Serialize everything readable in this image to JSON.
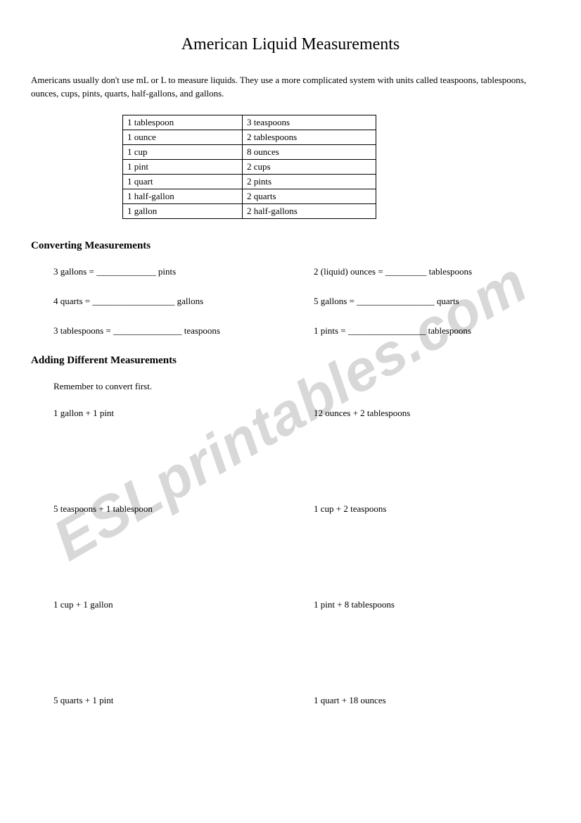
{
  "title": "American Liquid Measurements",
  "intro": "Americans usually don't use mL or L to measure liquids. They use a more complicated system with units called teaspoons, tablespoons, ounces, cups, pints, quarts, half-gallons, and gallons.",
  "table": {
    "rows": [
      {
        "left": "1 tablespoon",
        "right": "3 teaspoons"
      },
      {
        "left": "1 ounce",
        "right": "2 tablespoons"
      },
      {
        "left": "1 cup",
        "right": "8 ounces"
      },
      {
        "left": "1 pint",
        "right": "2 cups"
      },
      {
        "left": "1 quart",
        "right": "2 pints"
      },
      {
        "left": "1 half-gallon",
        "right": "2 quarts"
      },
      {
        "left": "1 gallon",
        "right": "2 half-gallons"
      }
    ]
  },
  "section1": {
    "heading": "Converting Measurements",
    "items": [
      {
        "left": "3 gallons = _____________ pints",
        "right": "2 (liquid) ounces = _________ tablespoons"
      },
      {
        "left": "4 quarts = __________________ gallons",
        "right": "5 gallons = _________________ quarts"
      },
      {
        "left": "3 tablespoons = _______________ teaspoons",
        "right": "1 pints = _________________ tablespoons"
      }
    ]
  },
  "section2": {
    "heading": "Adding Different Measurements",
    "note": "Remember to convert first.",
    "items": [
      {
        "left": "1 gallon + 1 pint",
        "right": "12 ounces + 2 tablespoons"
      },
      {
        "left": "5 teaspoons + 1 tablespoon",
        "right": "1 cup + 2 teaspoons"
      },
      {
        "left": "1 cup + 1 gallon",
        "right": "1 pint + 8 tablespoons"
      },
      {
        "left": "5 quarts + 1 pint",
        "right": "1 quart + 18 ounces"
      }
    ]
  },
  "watermark": "ESLprintables.com"
}
